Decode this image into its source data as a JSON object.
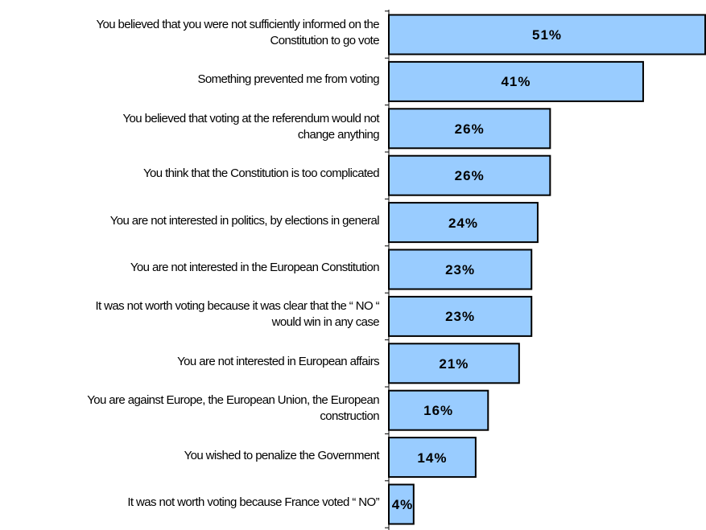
{
  "chart_data": {
    "type": "bar",
    "orientation": "horizontal",
    "categories": [
      "You believed that you were not sufficiently informed on the Constitution to go vote",
      "Something prevented me from voting",
      "You believed that voting at the referendum would not change anything",
      "You think that the Constitution is too complicated",
      "You are not interested in politics, by elections in general",
      "You are not interested in the European Constitution",
      "It was not worth voting because it was clear that the “ NO “ would win in any case",
      "You are not interested in European affairs",
      "You are against Europe, the European Union, the European construction",
      "You wished to penalize the Government",
      "It was not worth voting because France voted “ NO”"
    ],
    "category_lines": [
      [
        "You believed that you were not sufficiently informed on the",
        "Constitution to go vote"
      ],
      [
        "Something prevented me from voting"
      ],
      [
        "You believed that voting at the referendum would not",
        "change anything"
      ],
      [
        "You think that the Constitution is too complicated"
      ],
      [
        "You are not interested in politics, by elections in general"
      ],
      [
        "You are not interested in the European Constitution"
      ],
      [
        "It was not worth voting because it was clear that the “ NO “",
        "would win in any case"
      ],
      [
        "You are not interested in European affairs"
      ],
      [
        "You are against Europe, the European Union, the European",
        "construction"
      ],
      [
        "You wished to penalize the Government"
      ],
      [
        "It was not worth voting because France voted “ NO”"
      ]
    ],
    "values": [
      51,
      41,
      26,
      26,
      24,
      23,
      23,
      21,
      16,
      14,
      4
    ],
    "value_labels": [
      "51%",
      "41%",
      "26%",
      "26%",
      "24%",
      "23%",
      "23%",
      "21%",
      "16%",
      "14%",
      "4%"
    ],
    "xlim": [
      0,
      51
    ],
    "title": "",
    "xlabel": "",
    "ylabel": "",
    "grid": false,
    "legend": "none",
    "bar_color": "#99ccff",
    "bar_edge_color": "#000000"
  }
}
